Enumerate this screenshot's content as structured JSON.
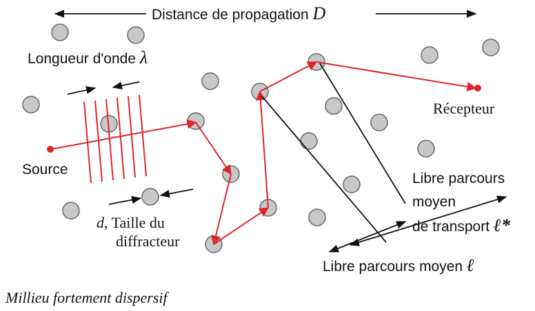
{
  "labels": {
    "distance": "Distance de propagation",
    "distance_symbol": "D",
    "wavelength": "Longueur d'onde",
    "wavelength_symbol": "λ",
    "source": "Source",
    "receiver": "Récepteur",
    "scatterer_symbol": "d",
    "scatterer_line1": ", Taille du",
    "scatterer_line2": "diffracteur",
    "transport_line1": "Libre parcours",
    "transport_line2": "moyen",
    "transport_line3": "de transport",
    "transport_symbol": "ℓ*",
    "mean_free_path": "Libre parcours moyen",
    "mean_free_path_symbol": "ℓ",
    "caption": "Millieu fortement dispersif"
  }
}
